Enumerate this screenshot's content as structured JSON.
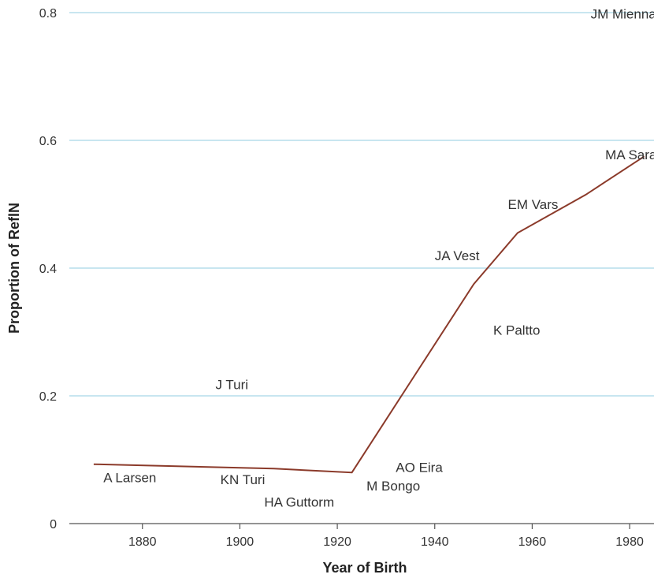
{
  "chart_data": {
    "type": "line",
    "title": "",
    "xlabel": "Year of Birth",
    "ylabel": "Proportion of ReflN",
    "xlim": [
      1865,
      1985
    ],
    "ylim": [
      0,
      0.8
    ],
    "x_ticks": [
      1880,
      1900,
      1920,
      1940,
      1960,
      1980
    ],
    "y_ticks": [
      0,
      0.2,
      0.4,
      0.6,
      0.8
    ],
    "y_tick_labels": [
      "0",
      "0.2",
      "0.4",
      "0.6",
      "0.8"
    ],
    "grid": "horizontal",
    "colors": {
      "line": "#8b3a2a",
      "grid": "#a8d8e8",
      "axis": "#555555"
    },
    "series": [
      {
        "x": [
          1870,
          1907,
          1923,
          1948,
          1957,
          1971,
          1983
        ],
        "y": [
          0.093,
          0.086,
          0.08,
          0.375,
          0.455,
          0.515,
          0.575
        ]
      }
    ],
    "points": [
      {
        "label": "A Larsen",
        "x": 1872,
        "y": 0.072
      },
      {
        "label": "KN Turi",
        "x": 1896,
        "y": 0.069
      },
      {
        "label": "HA Guttorm",
        "x": 1905,
        "y": 0.034
      },
      {
        "label": "J Turi",
        "x": 1895,
        "y": 0.218
      },
      {
        "label": "M Bongo",
        "x": 1926,
        "y": 0.059
      },
      {
        "label": "AO Eira",
        "x": 1932,
        "y": 0.088
      },
      {
        "label": "K Paltto",
        "x": 1952,
        "y": 0.303
      },
      {
        "label": "JA Vest",
        "x": 1940,
        "y": 0.42
      },
      {
        "label": "EM Vars",
        "x": 1955,
        "y": 0.5
      },
      {
        "label": "MA Sara",
        "x": 1975,
        "y": 0.578
      },
      {
        "label": "JM Mienna",
        "x": 1972,
        "y": 0.798
      }
    ]
  }
}
